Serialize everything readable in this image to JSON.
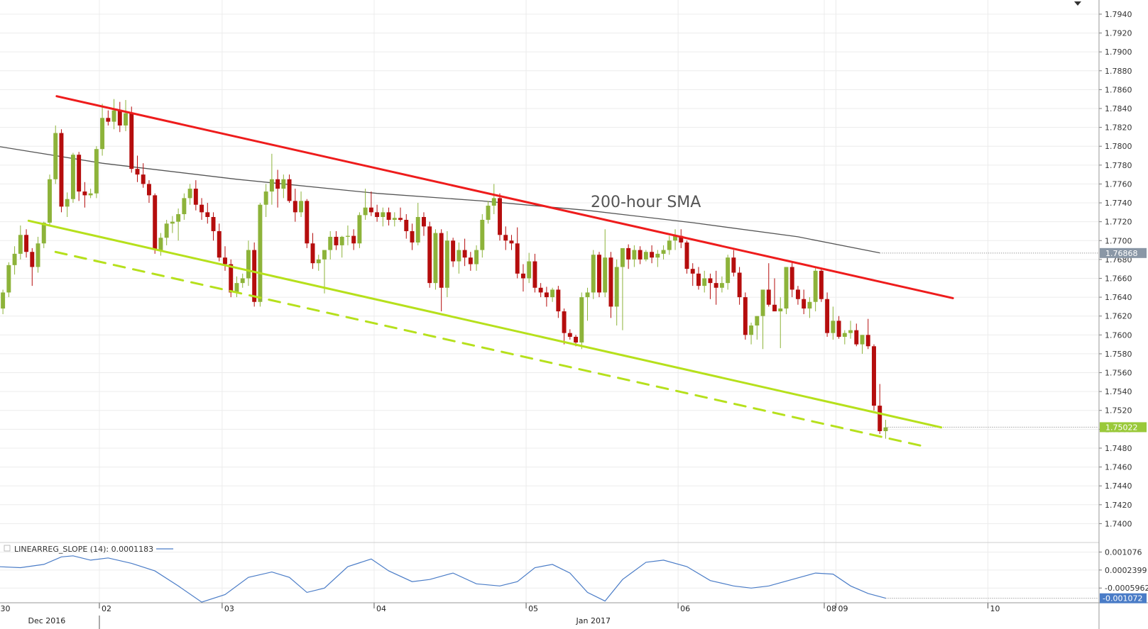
{
  "colors": {
    "up": "#8db33a",
    "down": "#b50d0d",
    "resistance": "#ee1c1c",
    "support": "#b6e01c",
    "sma": "#555555",
    "indicator": "#4a7cc7",
    "sma_tag_bg": "#8a97a6",
    "price_tag_bg": "#9ac93a",
    "ind_tag_bg": "#4a7cc7"
  },
  "chart_data": {
    "type": "candlestick",
    "ylim": [
      1.738,
      1.7955
    ],
    "yticks": [
      "1.7940",
      "1.7920",
      "1.7900",
      "1.7880",
      "1.7860",
      "1.7840",
      "1.7820",
      "1.7800",
      "1.7780",
      "1.7760",
      "1.7740",
      "1.7720",
      "1.7700",
      "1.7680",
      "1.7660",
      "1.7640",
      "1.7620",
      "1.7600",
      "1.7580",
      "1.7560",
      "1.7540",
      "1.7520",
      "1.7500",
      "1.7480",
      "1.7460",
      "1.7440",
      "1.7420",
      "1.7400"
    ],
    "xticks": [
      {
        "label": "30",
        "bar": -0.8
      },
      {
        "label": "02",
        "bar": 16.5
      },
      {
        "label": "03",
        "bar": 37.5
      },
      {
        "label": "04",
        "bar": 63.5
      },
      {
        "label": "05",
        "bar": 89.5
      },
      {
        "label": "06",
        "bar": 115.5
      },
      {
        "label": "08",
        "bar": 140.5
      },
      {
        "label": "09",
        "bar": 142.5
      },
      {
        "label": "10",
        "bar": 168.5
      }
    ],
    "month_labels": [
      {
        "label": "Dec 2016",
        "bar": 7.5
      },
      {
        "label": "Jan 2017",
        "bar": 101.0
      }
    ],
    "x_bar_range": [
      -0.5,
      187.5
    ],
    "candles": [
      [
        1.7628,
        1.7648,
        1.7622,
        1.7645
      ],
      [
        1.7645,
        1.7677,
        1.764,
        1.7674
      ],
      [
        1.7674,
        1.7694,
        1.7664,
        1.7686
      ],
      [
        1.7686,
        1.7716,
        1.768,
        1.7706
      ],
      [
        1.7706,
        1.7712,
        1.7682,
        1.7688
      ],
      [
        1.7688,
        1.7692,
        1.7652,
        1.7672
      ],
      [
        1.7672,
        1.7704,
        1.7666,
        1.7697
      ],
      [
        1.7697,
        1.772,
        1.7692,
        1.7719
      ],
      [
        1.7719,
        1.777,
        1.7715,
        1.7765
      ],
      [
        1.7765,
        1.7822,
        1.776,
        1.7814
      ],
      [
        1.7814,
        1.7818,
        1.773,
        1.7736
      ],
      [
        1.7736,
        1.7751,
        1.7725,
        1.7744
      ],
      [
        1.7744,
        1.7793,
        1.774,
        1.7791
      ],
      [
        1.7791,
        1.7794,
        1.7742,
        1.7752
      ],
      [
        1.7752,
        1.7762,
        1.7735,
        1.7748
      ],
      [
        1.7748,
        1.7755,
        1.7745,
        1.775
      ],
      [
        1.775,
        1.78,
        1.7745,
        1.7797
      ],
      [
        1.7797,
        1.7845,
        1.779,
        1.783
      ],
      [
        1.783,
        1.7838,
        1.7822,
        1.7826
      ],
      [
        1.7826,
        1.785,
        1.7818,
        1.7838
      ],
      [
        1.7838,
        1.7847,
        1.7815,
        1.7822
      ],
      [
        1.7822,
        1.7849,
        1.7816,
        1.7835
      ],
      [
        1.7835,
        1.7842,
        1.7772,
        1.7776
      ],
      [
        1.7776,
        1.779,
        1.7762,
        1.777
      ],
      [
        1.777,
        1.7782,
        1.7756,
        1.776
      ],
      [
        1.776,
        1.7764,
        1.774,
        1.7748
      ],
      [
        1.7748,
        1.775,
        1.7686,
        1.769
      ],
      [
        1.769,
        1.7708,
        1.7684,
        1.7703
      ],
      [
        1.7703,
        1.7722,
        1.7695,
        1.7718
      ],
      [
        1.7718,
        1.7726,
        1.7708,
        1.772
      ],
      [
        1.772,
        1.7734,
        1.77,
        1.7728
      ],
      [
        1.7728,
        1.775,
        1.7722,
        1.7745
      ],
      [
        1.7745,
        1.776,
        1.7738,
        1.7755
      ],
      [
        1.7755,
        1.7764,
        1.7732,
        1.7738
      ],
      [
        1.7738,
        1.7745,
        1.7722,
        1.773
      ],
      [
        1.773,
        1.774,
        1.7718,
        1.7725
      ],
      [
        1.7725,
        1.773,
        1.77,
        1.771
      ],
      [
        1.771,
        1.7718,
        1.7678,
        1.7682
      ],
      [
        1.7682,
        1.7694,
        1.7668,
        1.7675
      ],
      [
        1.7675,
        1.768,
        1.764,
        1.7645
      ],
      [
        1.7645,
        1.7662,
        1.764,
        1.7655
      ],
      [
        1.7655,
        1.7665,
        1.765,
        1.766
      ],
      [
        1.766,
        1.77,
        1.7652,
        1.769
      ],
      [
        1.769,
        1.7698,
        1.763,
        1.7635
      ],
      [
        1.7635,
        1.774,
        1.763,
        1.7738
      ],
      [
        1.7738,
        1.776,
        1.7725,
        1.7752
      ],
      [
        1.7752,
        1.7792,
        1.7738,
        1.7765
      ],
      [
        1.7765,
        1.7775,
        1.7735,
        1.7755
      ],
      [
        1.7755,
        1.777,
        1.7745,
        1.7765
      ],
      [
        1.7765,
        1.777,
        1.774,
        1.7742
      ],
      [
        1.7742,
        1.7755,
        1.772,
        1.773
      ],
      [
        1.773,
        1.7752,
        1.7725,
        1.7742
      ],
      [
        1.7742,
        1.7744,
        1.7692,
        1.7697
      ],
      [
        1.7697,
        1.7708,
        1.767,
        1.7676
      ],
      [
        1.7676,
        1.7685,
        1.7668,
        1.768
      ],
      [
        1.768,
        1.769,
        1.7644,
        1.769
      ],
      [
        1.769,
        1.771,
        1.768,
        1.7704
      ],
      [
        1.7704,
        1.771,
        1.769,
        1.7695
      ],
      [
        1.7695,
        1.7705,
        1.7682,
        1.7704
      ],
      [
        1.7704,
        1.7716,
        1.7695,
        1.7705
      ],
      [
        1.7705,
        1.7712,
        1.769,
        1.7697
      ],
      [
        1.7697,
        1.773,
        1.7692,
        1.7727
      ],
      [
        1.7727,
        1.7755,
        1.7722,
        1.7735
      ],
      [
        1.7735,
        1.7752,
        1.7726,
        1.773
      ],
      [
        1.773,
        1.7738,
        1.772,
        1.7725
      ],
      [
        1.7725,
        1.7735,
        1.7715,
        1.773
      ],
      [
        1.773,
        1.7735,
        1.7716,
        1.7722
      ],
      [
        1.7722,
        1.773,
        1.7715,
        1.7724
      ],
      [
        1.7724,
        1.7735,
        1.772,
        1.7722
      ],
      [
        1.7722,
        1.7728,
        1.7702,
        1.771
      ],
      [
        1.771,
        1.7718,
        1.769,
        1.7698
      ],
      [
        1.7698,
        1.774,
        1.7695,
        1.7725
      ],
      [
        1.7725,
        1.773,
        1.7705,
        1.7715
      ],
      [
        1.7715,
        1.772,
        1.765,
        1.7655
      ],
      [
        1.7655,
        1.7712,
        1.7648,
        1.7708
      ],
      [
        1.7708,
        1.7712,
        1.7625,
        1.765
      ],
      [
        1.765,
        1.771,
        1.764,
        1.77
      ],
      [
        1.77,
        1.7703,
        1.7672,
        1.7678
      ],
      [
        1.7678,
        1.7698,
        1.7665,
        1.769
      ],
      [
        1.769,
        1.7702,
        1.7673,
        1.7682
      ],
      [
        1.7682,
        1.7688,
        1.7668,
        1.7675
      ],
      [
        1.7675,
        1.7695,
        1.7668,
        1.769
      ],
      [
        1.769,
        1.7728,
        1.7682,
        1.7722
      ],
      [
        1.7722,
        1.7742,
        1.7718,
        1.7737
      ],
      [
        1.7737,
        1.776,
        1.7728,
        1.7745
      ],
      [
        1.7745,
        1.775,
        1.77,
        1.7706
      ],
      [
        1.7706,
        1.7715,
        1.769,
        1.77
      ],
      [
        1.77,
        1.7706,
        1.769,
        1.7697
      ],
      [
        1.7697,
        1.7714,
        1.766,
        1.7665
      ],
      [
        1.7665,
        1.7675,
        1.7646,
        1.766
      ],
      [
        1.766,
        1.7687,
        1.7655,
        1.7678
      ],
      [
        1.7678,
        1.7686,
        1.7645,
        1.765
      ],
      [
        1.765,
        1.7655,
        1.764,
        1.7645
      ],
      [
        1.7645,
        1.7651,
        1.763,
        1.764
      ],
      [
        1.764,
        1.765,
        1.7635,
        1.7648
      ],
      [
        1.7648,
        1.7652,
        1.7618,
        1.7625
      ],
      [
        1.7625,
        1.7628,
        1.759,
        1.7602
      ],
      [
        1.7602,
        1.7606,
        1.7595,
        1.7598
      ],
      [
        1.7598,
        1.76,
        1.7588,
        1.7592
      ],
      [
        1.7592,
        1.7645,
        1.7585,
        1.764
      ],
      [
        1.764,
        1.765,
        1.7615,
        1.7645
      ],
      [
        1.7645,
        1.769,
        1.7638,
        1.7685
      ],
      [
        1.7685,
        1.7688,
        1.764,
        1.7645
      ],
      [
        1.7645,
        1.7712,
        1.764,
        1.7682
      ],
      [
        1.7682,
        1.7688,
        1.7618,
        1.763
      ],
      [
        1.763,
        1.768,
        1.761,
        1.7672
      ],
      [
        1.7672,
        1.769,
        1.7605,
        1.7692
      ],
      [
        1.7692,
        1.7696,
        1.767,
        1.768
      ],
      [
        1.768,
        1.7695,
        1.7672,
        1.769
      ],
      [
        1.769,
        1.7694,
        1.7675,
        1.768
      ],
      [
        1.768,
        1.769,
        1.7678,
        1.7688
      ],
      [
        1.7688,
        1.7695,
        1.7676,
        1.7682
      ],
      [
        1.7682,
        1.769,
        1.7672,
        1.7686
      ],
      [
        1.7686,
        1.7695,
        1.768,
        1.769
      ],
      [
        1.769,
        1.7705,
        1.7685,
        1.77
      ],
      [
        1.77,
        1.7712,
        1.769,
        1.7705
      ],
      [
        1.7705,
        1.7712,
        1.7692,
        1.7698
      ],
      [
        1.7698,
        1.77,
        1.7665,
        1.767
      ],
      [
        1.767,
        1.7676,
        1.7652,
        1.7665
      ],
      [
        1.7665,
        1.7672,
        1.7648,
        1.7652
      ],
      [
        1.7652,
        1.7668,
        1.7645,
        1.766
      ],
      [
        1.766,
        1.7665,
        1.7638,
        1.7655
      ],
      [
        1.7655,
        1.7668,
        1.7632,
        1.765
      ],
      [
        1.765,
        1.7662,
        1.7645,
        1.7655
      ],
      [
        1.7655,
        1.7685,
        1.7648,
        1.7682
      ],
      [
        1.7682,
        1.769,
        1.7662,
        1.7666
      ],
      [
        1.7666,
        1.7672,
        1.7632,
        1.764
      ],
      [
        1.764,
        1.7645,
        1.7595,
        1.76
      ],
      [
        1.76,
        1.7613,
        1.759,
        1.761
      ],
      [
        1.761,
        1.762,
        1.7595,
        1.762
      ],
      [
        1.762,
        1.7648,
        1.7585,
        1.7648
      ],
      [
        1.7648,
        1.7676,
        1.763,
        1.7632
      ],
      [
        1.7632,
        1.766,
        1.7625,
        1.7625
      ],
      [
        1.7625,
        1.764,
        1.7586,
        1.7628
      ],
      [
        1.7628,
        1.7672,
        1.7622,
        1.7672
      ],
      [
        1.7672,
        1.7678,
        1.764,
        1.7648
      ],
      [
        1.7648,
        1.7652,
        1.7632,
        1.7638
      ],
      [
        1.7638,
        1.7648,
        1.7622,
        1.7628
      ],
      [
        1.7628,
        1.764,
        1.7618,
        1.7635
      ],
      [
        1.7635,
        1.7672,
        1.7625,
        1.7668
      ],
      [
        1.7668,
        1.767,
        1.7635,
        1.7638
      ],
      [
        1.7638,
        1.7645,
        1.7598,
        1.7602
      ],
      [
        1.7602,
        1.763,
        1.7595,
        1.7615
      ],
      [
        1.7615,
        1.762,
        1.7596,
        1.7598
      ],
      [
        1.7598,
        1.7605,
        1.759,
        1.7602
      ],
      [
        1.7602,
        1.7615,
        1.7596,
        1.7605
      ],
      [
        1.7605,
        1.7612,
        1.7588,
        1.759
      ],
      [
        1.759,
        1.76,
        1.758,
        1.76
      ],
      [
        1.76,
        1.7617,
        1.7585,
        1.7588
      ],
      [
        1.7588,
        1.759,
        1.752,
        1.7525
      ],
      [
        1.7525,
        1.7548,
        1.7495,
        1.7498
      ],
      [
        1.7498,
        1.751,
        1.749,
        1.7502
      ]
    ],
    "sma_200": {
      "label": "200-hour SMA",
      "points": [
        [
          -1,
          1.78
        ],
        [
          17,
          1.7782
        ],
        [
          40,
          1.7765
        ],
        [
          64,
          1.775
        ],
        [
          82,
          1.7742
        ],
        [
          100,
          1.7732
        ],
        [
          118,
          1.7719
        ],
        [
          136,
          1.7704
        ],
        [
          150,
          1.7687
        ]
      ],
      "last_value": "1.76868"
    },
    "last_price": "1.75022",
    "trendlines": [
      {
        "name": "resistance",
        "style": "solid",
        "points": [
          [
            9.2,
            1.7853
          ],
          [
            162.5,
            1.7639
          ]
        ]
      },
      {
        "name": "support",
        "style": "solid",
        "points": [
          [
            4.4,
            1.7721
          ],
          [
            160.5,
            1.7502
          ]
        ]
      },
      {
        "name": "support-lower",
        "style": "dashed",
        "points": [
          [
            9.0,
            1.7688
          ],
          [
            157.5,
            1.7482
          ]
        ]
      }
    ],
    "indicator": {
      "label": "LINEARREG_SLOPE (14): 0.0001183",
      "yticks": [
        "0.001076",
        "0.0002399",
        "-0.0005962"
      ],
      "ylim": [
        -0.00128,
        0.00142
      ],
      "last_value": "-0.001072",
      "points": [
        [
          -1,
          0.0004
        ],
        [
          3,
          0.00035
        ],
        [
          7,
          0.0005
        ],
        [
          10,
          0.00085
        ],
        [
          12,
          0.0009
        ],
        [
          15,
          0.0007
        ],
        [
          18,
          0.0008
        ],
        [
          22,
          0.00055
        ],
        [
          26,
          0.0002
        ],
        [
          30,
          -0.0005
        ],
        [
          34,
          -0.00125
        ],
        [
          38,
          -0.0009
        ],
        [
          42,
          -0.0001
        ],
        [
          46,
          0.00015
        ],
        [
          49,
          -0.0001
        ],
        [
          52,
          -0.0008
        ],
        [
          55,
          -0.0006
        ],
        [
          59,
          0.0004
        ],
        [
          63,
          0.00075
        ],
        [
          66,
          0.0002
        ],
        [
          70,
          -0.0003
        ],
        [
          73,
          -0.0002
        ],
        [
          77,
          0.0001
        ],
        [
          81,
          -0.0004
        ],
        [
          85,
          -0.0005
        ],
        [
          88,
          -0.0003
        ],
        [
          91,
          0.00035
        ],
        [
          94,
          0.0005
        ],
        [
          97,
          0.0001
        ],
        [
          100,
          -0.0008
        ],
        [
          103,
          -0.0012
        ],
        [
          106,
          -0.0002
        ],
        [
          110,
          0.0006
        ],
        [
          113,
          0.0007
        ],
        [
          117,
          0.0004
        ],
        [
          121,
          -0.00025
        ],
        [
          125,
          -0.0005
        ],
        [
          128,
          -0.0006
        ],
        [
          131,
          -0.0005
        ],
        [
          135,
          -0.0002
        ],
        [
          139,
          0.0001
        ],
        [
          142,
          5e-05
        ],
        [
          145,
          -0.0005
        ],
        [
          148,
          -0.00085
        ],
        [
          151,
          -0.00107
        ]
      ]
    }
  }
}
